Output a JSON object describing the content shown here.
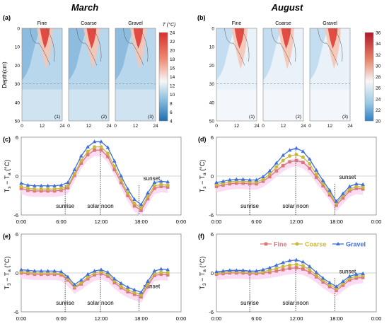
{
  "figure": {
    "heading_left": "March",
    "heading_right": "August"
  },
  "colors": {
    "fine": "#d9787a",
    "coarse": "#c9b83a",
    "gravel": "#3f6fdc",
    "band": "#fbd8f2",
    "cold": "#2f7fc1",
    "warm": "#d7302f",
    "neutral": "#f7f7f7"
  },
  "chart_data": [
    {
      "id": "a",
      "type": "heatmap",
      "panel_label": "(a)",
      "ylabel": "Depth(cm)",
      "panels": [
        {
          "title": "Fine",
          "label": "(1)"
        },
        {
          "title": "Coarse",
          "label": "(2)"
        },
        {
          "title": "Gravel",
          "label": "(3)"
        }
      ],
      "x_ticks": [
        "0",
        "12",
        "24"
      ],
      "y_ticks": [
        "0",
        "10",
        "20",
        "30",
        "40",
        "50"
      ],
      "xlim": [
        0,
        24
      ],
      "ylim": [
        0,
        50
      ],
      "dashed_depth": 30,
      "colorbar": {
        "title": "T (°C)",
        "ticks": [
          "4",
          "6",
          "8",
          "10",
          "12",
          "14",
          "16",
          "18",
          "20",
          "22",
          "24"
        ],
        "range": [
          4,
          24
        ]
      }
    },
    {
      "id": "b",
      "type": "heatmap",
      "panel_label": "(b)",
      "panels": [
        {
          "title": "Fine",
          "label": "(1)"
        },
        {
          "title": "Coarse",
          "label": "(2)"
        },
        {
          "title": "Gravel",
          "label": "(3)"
        }
      ],
      "x_ticks": [
        "0",
        "12",
        "24"
      ],
      "y_ticks": [
        "0",
        "10",
        "20",
        "30",
        "40",
        "50"
      ],
      "xlim": [
        0,
        24
      ],
      "ylim": [
        0,
        50
      ],
      "dashed_depth": 30,
      "colorbar": {
        "ticks": [
          "20",
          "22",
          "24",
          "26",
          "28",
          "30",
          "32",
          "34",
          "36"
        ],
        "range": [
          20,
          36
        ]
      }
    },
    {
      "id": "c",
      "type": "line",
      "panel_label": "(c)",
      "ylabel_main": "T",
      "ylabel_sub1": "s",
      "ylabel_mid": " − T",
      "ylabel_sub2": "a",
      "ylabel_unit": " (°C)",
      "y_ticks": [
        "6",
        "0",
        "-6"
      ],
      "x_ticks": [
        "0:00",
        "6:00",
        "12:00",
        "18:00",
        "0:00"
      ],
      "ylim": [
        -6,
        6
      ],
      "x": [
        0,
        1,
        2,
        3,
        4,
        5,
        6,
        7,
        8,
        9,
        10,
        11,
        12,
        13,
        14,
        15,
        16,
        17,
        18,
        19,
        20,
        21,
        22
      ],
      "series": [
        {
          "key": "fine",
          "values": [
            -1.9,
            -2.2,
            -2.3,
            -2.3,
            -2.3,
            -2.3,
            -2.2,
            -1.8,
            0.1,
            2.0,
            3.3,
            4.0,
            4.0,
            3.0,
            1.0,
            -1.0,
            -3.0,
            -4.6,
            -5.3,
            -3.5,
            -1.9,
            -1.6,
            -1.7
          ]
        },
        {
          "key": "coarse",
          "values": [
            -1.6,
            -1.9,
            -2.0,
            -2.0,
            -2.0,
            -2.0,
            -1.9,
            -1.5,
            0.4,
            2.4,
            3.8,
            4.5,
            4.5,
            3.5,
            1.5,
            -0.6,
            -2.6,
            -4.2,
            -4.9,
            -3.1,
            -1.5,
            -1.3,
            -1.4
          ]
        },
        {
          "key": "gravel",
          "values": [
            -1.1,
            -1.4,
            -1.5,
            -1.5,
            -1.5,
            -1.5,
            -1.4,
            -1.0,
            1.0,
            3.1,
            4.5,
            5.3,
            5.3,
            4.4,
            2.3,
            0.0,
            -2.0,
            -3.6,
            -4.4,
            -2.6,
            -1.0,
            -0.8,
            -0.9
          ]
        }
      ],
      "annotations": [
        {
          "text": "sunrise",
          "x": 6.6,
          "from": -1.4,
          "to": -6
        },
        {
          "text": "solar noon",
          "x": 11.9,
          "from": 5.0,
          "to": -6
        },
        {
          "text": "sunset",
          "x": 17.7,
          "from": -1.4,
          "to": -6
        }
      ]
    },
    {
      "id": "d",
      "type": "line",
      "panel_label": "(d)",
      "ylabel_main": "T",
      "ylabel_sub1": "s",
      "ylabel_mid": " − T",
      "ylabel_sub2": "a",
      "ylabel_unit": " (°C)",
      "y_ticks": [
        "6",
        "0",
        "-6"
      ],
      "x_ticks": [
        "0:00",
        "6:00",
        "12:00",
        "18:00",
        "0:00"
      ],
      "ylim": [
        -6,
        6
      ],
      "x": [
        0,
        1,
        2,
        3,
        4,
        5,
        6,
        7,
        8,
        9,
        10,
        11,
        12,
        13,
        14,
        15,
        16,
        17,
        18,
        19,
        20,
        21,
        22
      ],
      "series": [
        {
          "key": "fine",
          "values": [
            -1.6,
            -1.4,
            -1.2,
            -1.1,
            -1.1,
            -1.2,
            -1.2,
            -0.8,
            -0.1,
            0.8,
            1.6,
            2.2,
            2.4,
            2.1,
            1.2,
            -0.2,
            -1.5,
            -2.9,
            -4.5,
            -3.4,
            -2.3,
            -1.9,
            -2.0
          ]
        },
        {
          "key": "coarse",
          "values": [
            -1.3,
            -1.1,
            -0.9,
            -0.8,
            -0.8,
            -0.9,
            -0.9,
            -0.5,
            0.3,
            1.4,
            2.4,
            3.1,
            3.3,
            2.9,
            1.9,
            0.3,
            -1.1,
            -2.6,
            -4.2,
            -3.0,
            -2.0,
            -1.6,
            -1.7
          ]
        },
        {
          "key": "gravel",
          "values": [
            -1.0,
            -0.8,
            -0.6,
            -0.5,
            -0.5,
            -0.6,
            -0.6,
            -0.1,
            0.8,
            2.0,
            3.2,
            4.0,
            4.3,
            3.8,
            2.6,
            0.9,
            -0.7,
            -2.2,
            -3.9,
            -2.7,
            -1.6,
            -1.2,
            -1.3
          ]
        }
      ],
      "annotations": [
        {
          "text": "sunrise",
          "x": 5.0,
          "from": -0.6,
          "to": -6
        },
        {
          "text": "solar noon",
          "x": 11.9,
          "from": 4.3,
          "to": -6
        },
        {
          "text": "sunset",
          "x": 17.8,
          "from": -1.2,
          "to": -6
        }
      ]
    },
    {
      "id": "e",
      "type": "line",
      "panel_label": "(e)",
      "ylabel_main": "T",
      "ylabel_sub1": "3",
      "ylabel_mid": " − T",
      "ylabel_sub2": "a",
      "ylabel_unit": " (°C)",
      "y_ticks": [
        "6",
        "0",
        "-6"
      ],
      "x_ticks": [
        "0:00",
        "6:00",
        "12:00",
        "18:00",
        "0:00"
      ],
      "ylim": [
        -6,
        6
      ],
      "x": [
        0,
        1,
        2,
        3,
        4,
        5,
        6,
        7,
        8,
        9,
        10,
        11,
        12,
        13,
        14,
        15,
        16,
        17,
        18,
        19,
        20,
        21,
        22
      ],
      "series": [
        {
          "key": "fine",
          "values": [
            0.0,
            -0.1,
            -0.2,
            -0.2,
            -0.2,
            -0.2,
            -0.3,
            -1.1,
            -2.3,
            -1.7,
            -0.9,
            -0.3,
            -0.1,
            -0.5,
            -1.5,
            -2.3,
            -2.9,
            -3.3,
            -3.7,
            -2.0,
            -0.4,
            -0.2,
            -0.3
          ]
        },
        {
          "key": "coarse",
          "values": [
            0.2,
            0.1,
            0.0,
            0.0,
            0.0,
            0.0,
            -0.1,
            -0.9,
            -2.1,
            -1.5,
            -0.6,
            0.0,
            0.2,
            -0.2,
            -1.2,
            -2.0,
            -2.6,
            -3.0,
            -3.4,
            -1.7,
            -0.1,
            0.1,
            0.0
          ]
        },
        {
          "key": "gravel",
          "values": [
            0.5,
            0.4,
            0.3,
            0.3,
            0.3,
            0.3,
            0.2,
            -0.6,
            -1.8,
            -1.1,
            -0.2,
            0.3,
            0.5,
            0.1,
            -0.9,
            -1.6,
            -2.2,
            -2.6,
            -3.0,
            -1.3,
            0.3,
            0.6,
            0.5
          ]
        }
      ],
      "annotations": [
        {
          "text": "sunrise",
          "x": 6.6,
          "from": -0.3,
          "to": -6
        },
        {
          "text": "solar noon",
          "x": 11.9,
          "from": 0.4,
          "to": -6
        },
        {
          "text": "sunset",
          "x": 17.7,
          "from": -3.1,
          "to": -6
        }
      ]
    },
    {
      "id": "f",
      "type": "line",
      "panel_label": "(f)",
      "ylabel_main": "T",
      "ylabel_sub1": "3",
      "ylabel_mid": " − T",
      "ylabel_sub2": "a",
      "ylabel_unit": " (°C)",
      "y_ticks": [
        "6",
        "0",
        "-6"
      ],
      "x_ticks": [
        "0:00",
        "6:00",
        "12:00",
        "18:00",
        "0:00"
      ],
      "ylim": [
        -6,
        6
      ],
      "x": [
        0,
        1,
        2,
        3,
        4,
        5,
        6,
        7,
        8,
        9,
        10,
        11,
        12,
        13,
        14,
        15,
        16,
        17,
        18,
        19,
        20,
        21,
        22
      ],
      "legend": {
        "position": "top-right",
        "items": [
          {
            "key": "fine",
            "label": "Fine",
            "marker": "square"
          },
          {
            "key": "coarse",
            "label": "Coarse",
            "marker": "circle"
          },
          {
            "key": "gravel",
            "label": "Gravel",
            "marker": "triangle"
          }
        ]
      },
      "series": [
        {
          "key": "fine",
          "values": [
            -0.2,
            -0.1,
            0.0,
            0.0,
            0.0,
            -0.1,
            -0.1,
            0.0,
            0.1,
            0.3,
            0.5,
            0.7,
            0.8,
            0.6,
            0.1,
            -0.6,
            -1.4,
            -2.1,
            -2.7,
            -1.9,
            -1.1,
            -0.8,
            -0.7
          ]
        },
        {
          "key": "coarse",
          "values": [
            0.0,
            0.1,
            0.2,
            0.2,
            0.2,
            0.1,
            0.1,
            0.2,
            0.4,
            0.7,
            1.0,
            1.2,
            1.3,
            1.1,
            0.5,
            -0.3,
            -1.1,
            -1.8,
            -2.4,
            -1.6,
            -0.8,
            -0.5,
            -0.4
          ]
        },
        {
          "key": "gravel",
          "values": [
            0.2,
            0.3,
            0.4,
            0.4,
            0.4,
            0.3,
            0.3,
            0.5,
            0.8,
            1.2,
            1.6,
            1.9,
            2.0,
            1.7,
            1.0,
            0.1,
            -0.8,
            -1.5,
            -2.1,
            -1.3,
            -0.5,
            -0.2,
            -0.1
          ]
        }
      ],
      "annotations": [
        {
          "text": "sunrise",
          "x": 5.0,
          "from": 0.3,
          "to": -6
        },
        {
          "text": "solar noon",
          "x": 11.9,
          "from": 1.8,
          "to": -6
        },
        {
          "text": "sunset",
          "x": 17.8,
          "from": -0.8,
          "to": -6
        }
      ]
    }
  ]
}
